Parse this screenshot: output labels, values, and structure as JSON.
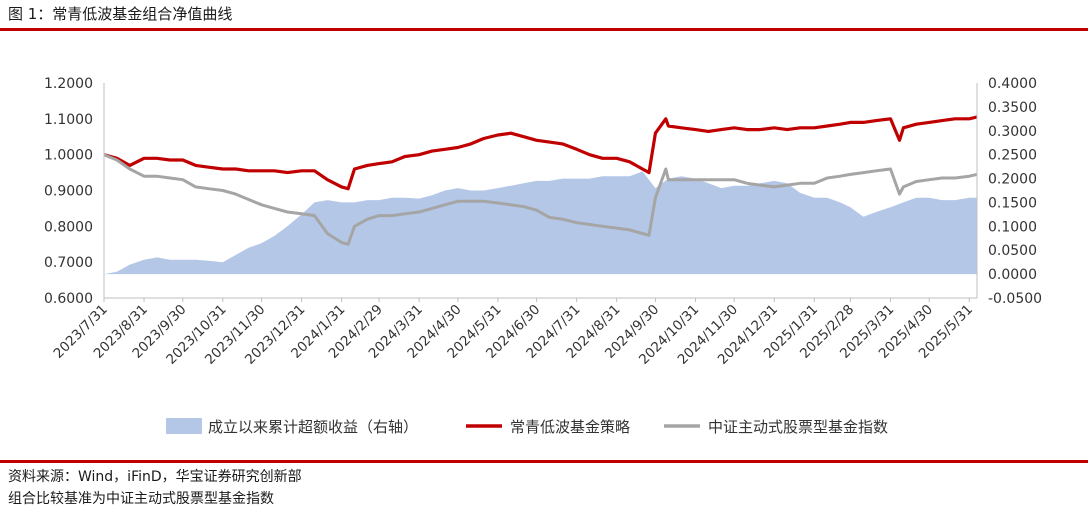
{
  "figure": {
    "title": "图 1：常青低波基金组合净值曲线",
    "source": "资料来源：Wind，iFinD，华宝证券研究创新部",
    "note": "组合比较基准为中证主动式股票型基金指数"
  },
  "colors": {
    "excess": "#b4c7e7",
    "strategy": "#c00000",
    "benchmark": "#a5a5a5",
    "rule": "#c00000"
  },
  "chart_data": {
    "type": "line",
    "left_axis": {
      "range": [
        0.6,
        1.2
      ],
      "ticks": [
        "0.6000",
        "0.7000",
        "0.8000",
        "0.9000",
        "1.0000",
        "1.1000",
        "1.2000"
      ],
      "tick_values": [
        0.6,
        0.7,
        0.8,
        0.9,
        1.0,
        1.1,
        1.2
      ]
    },
    "right_axis": {
      "range": [
        -0.05,
        0.4
      ],
      "ticks": [
        "-0.0500",
        "0.0000",
        "0.0500",
        "0.1000",
        "0.1500",
        "0.2000",
        "0.2500",
        "0.3000",
        "0.3500",
        "0.4000"
      ],
      "tick_values": [
        -0.05,
        0,
        0.05,
        0.1,
        0.15,
        0.2,
        0.25,
        0.3,
        0.35,
        0.4
      ]
    },
    "x_ticks": [
      "2023/7/31",
      "2023/8/31",
      "2023/9/30",
      "2023/10/31",
      "2023/11/30",
      "2023/12/31",
      "2024/1/31",
      "2024/2/29",
      "2024/3/31",
      "2024/4/30",
      "2024/5/31",
      "2024/6/30",
      "2024/7/31",
      "2024/8/31",
      "2024/9/30",
      "2024/10/31",
      "2024/11/30",
      "2024/12/31",
      "2025/1/31",
      "2025/2/28",
      "2025/3/31",
      "2025/4/30",
      "2025/5/31"
    ],
    "grid": false,
    "legend_position": "bottom",
    "series": [
      {
        "name": "成立以来累计超额收益（右轴）",
        "kind": "area",
        "axis": "right",
        "x": [
          "2023/7/31",
          "2023/8/10",
          "2023/8/20",
          "2023/8/31",
          "2023/9/10",
          "2023/9/20",
          "2023/9/30",
          "2023/10/10",
          "2023/10/20",
          "2023/10/31",
          "2023/11/10",
          "2023/11/20",
          "2023/11/30",
          "2023/12/10",
          "2023/12/20",
          "2023/12/31",
          "2024/1/10",
          "2024/1/20",
          "2024/1/31",
          "2024/2/10",
          "2024/2/20",
          "2024/2/29",
          "2024/3/10",
          "2024/3/20",
          "2024/3/31",
          "2024/4/10",
          "2024/4/20",
          "2024/4/30",
          "2024/5/10",
          "2024/5/20",
          "2024/5/31",
          "2024/6/10",
          "2024/6/20",
          "2024/6/30",
          "2024/7/10",
          "2024/7/20",
          "2024/7/31",
          "2024/8/10",
          "2024/8/20",
          "2024/8/31",
          "2024/9/10",
          "2024/9/20",
          "2024/9/30",
          "2024/10/10",
          "2024/10/20",
          "2024/10/31",
          "2024/11/10",
          "2024/11/20",
          "2024/11/30",
          "2024/12/10",
          "2024/12/20",
          "2024/12/31",
          "2025/1/10",
          "2025/1/20",
          "2025/1/31",
          "2025/2/10",
          "2025/2/20",
          "2025/2/28",
          "2025/3/10",
          "2025/3/20",
          "2025/3/31",
          "2025/4/10",
          "2025/4/20",
          "2025/4/30",
          "2025/5/10",
          "2025/5/20",
          "2025/5/31",
          "2025/6/6"
        ],
        "y": [
          0.0,
          0.005,
          0.02,
          0.03,
          0.035,
          0.03,
          0.03,
          0.03,
          0.028,
          0.025,
          0.04,
          0.055,
          0.065,
          0.08,
          0.1,
          0.125,
          0.15,
          0.155,
          0.15,
          0.15,
          0.155,
          0.155,
          0.16,
          0.16,
          0.158,
          0.165,
          0.175,
          0.18,
          0.175,
          0.175,
          0.18,
          0.185,
          0.19,
          0.195,
          0.195,
          0.2,
          0.2,
          0.2,
          0.205,
          0.205,
          0.205,
          0.215,
          0.18,
          0.2,
          0.205,
          0.2,
          0.19,
          0.18,
          0.185,
          0.185,
          0.19,
          0.195,
          0.19,
          0.17,
          0.16,
          0.16,
          0.15,
          0.14,
          0.12,
          0.13,
          0.14,
          0.15,
          0.16,
          0.16,
          0.155,
          0.155,
          0.16,
          0.16
        ]
      },
      {
        "name": "常青低波基金策略",
        "kind": "line",
        "axis": "left",
        "x": [
          "2023/7/31",
          "2023/8/10",
          "2023/8/20",
          "2023/8/31",
          "2023/9/10",
          "2023/9/20",
          "2023/9/30",
          "2023/10/10",
          "2023/10/20",
          "2023/10/31",
          "2023/11/10",
          "2023/11/20",
          "2023/11/30",
          "2023/12/10",
          "2023/12/20",
          "2023/12/31",
          "2024/1/10",
          "2024/1/20",
          "2024/1/31",
          "2024/2/5",
          "2024/2/10",
          "2024/2/20",
          "2024/2/29",
          "2024/3/10",
          "2024/3/20",
          "2024/3/31",
          "2024/4/10",
          "2024/4/20",
          "2024/4/30",
          "2024/5/10",
          "2024/5/20",
          "2024/5/31",
          "2024/6/10",
          "2024/6/20",
          "2024/6/30",
          "2024/7/10",
          "2024/7/20",
          "2024/7/31",
          "2024/8/10",
          "2024/8/20",
          "2024/8/31",
          "2024/9/10",
          "2024/9/20",
          "2024/9/25",
          "2024/9/30",
          "2024/10/8",
          "2024/10/10",
          "2024/10/20",
          "2024/10/31",
          "2024/11/10",
          "2024/11/20",
          "2024/11/30",
          "2024/12/10",
          "2024/12/20",
          "2024/12/31",
          "2025/1/10",
          "2025/1/20",
          "2025/1/31",
          "2025/2/10",
          "2025/2/20",
          "2025/2/28",
          "2025/3/10",
          "2025/3/20",
          "2025/3/31",
          "2025/4/7",
          "2025/4/10",
          "2025/4/20",
          "2025/4/30",
          "2025/5/10",
          "2025/5/20",
          "2025/5/31",
          "2025/6/6"
        ],
        "y": [
          1.0,
          0.99,
          0.97,
          0.99,
          0.99,
          0.985,
          0.985,
          0.97,
          0.965,
          0.96,
          0.96,
          0.955,
          0.955,
          0.955,
          0.95,
          0.955,
          0.955,
          0.93,
          0.91,
          0.905,
          0.96,
          0.97,
          0.975,
          0.98,
          0.995,
          1.0,
          1.01,
          1.015,
          1.02,
          1.03,
          1.045,
          1.055,
          1.06,
          1.05,
          1.04,
          1.035,
          1.03,
          1.015,
          1.0,
          0.99,
          0.99,
          0.98,
          0.96,
          0.95,
          1.06,
          1.1,
          1.08,
          1.075,
          1.07,
          1.065,
          1.07,
          1.075,
          1.07,
          1.07,
          1.075,
          1.07,
          1.075,
          1.075,
          1.08,
          1.085,
          1.09,
          1.09,
          1.095,
          1.1,
          1.04,
          1.075,
          1.085,
          1.09,
          1.095,
          1.1,
          1.1,
          1.105
        ]
      },
      {
        "name": "中证主动式股票型基金指数",
        "kind": "line",
        "axis": "left",
        "x": [
          "2023/7/31",
          "2023/8/10",
          "2023/8/20",
          "2023/8/31",
          "2023/9/10",
          "2023/9/20",
          "2023/9/30",
          "2023/10/10",
          "2023/10/20",
          "2023/10/31",
          "2023/11/10",
          "2023/11/20",
          "2023/11/30",
          "2023/12/10",
          "2023/12/20",
          "2023/12/31",
          "2024/1/10",
          "2024/1/20",
          "2024/1/31",
          "2024/2/5",
          "2024/2/10",
          "2024/2/20",
          "2024/2/29",
          "2024/3/10",
          "2024/3/20",
          "2024/3/31",
          "2024/4/10",
          "2024/4/20",
          "2024/4/30",
          "2024/5/10",
          "2024/5/20",
          "2024/5/31",
          "2024/6/10",
          "2024/6/20",
          "2024/6/30",
          "2024/7/10",
          "2024/7/20",
          "2024/7/31",
          "2024/8/10",
          "2024/8/20",
          "2024/8/31",
          "2024/9/10",
          "2024/9/20",
          "2024/9/25",
          "2024/9/30",
          "2024/10/8",
          "2024/10/10",
          "2024/10/20",
          "2024/10/31",
          "2024/11/10",
          "2024/11/20",
          "2024/11/30",
          "2024/12/10",
          "2024/12/20",
          "2024/12/31",
          "2025/1/10",
          "2025/1/20",
          "2025/1/31",
          "2025/2/10",
          "2025/2/20",
          "2025/2/28",
          "2025/3/10",
          "2025/3/20",
          "2025/3/31",
          "2025/4/7",
          "2025/4/10",
          "2025/4/20",
          "2025/4/30",
          "2025/5/10",
          "2025/5/20",
          "2025/5/31",
          "2025/6/6"
        ],
        "y": [
          1.0,
          0.985,
          0.96,
          0.94,
          0.94,
          0.935,
          0.93,
          0.91,
          0.905,
          0.9,
          0.89,
          0.875,
          0.86,
          0.85,
          0.84,
          0.835,
          0.83,
          0.78,
          0.755,
          0.75,
          0.8,
          0.82,
          0.83,
          0.83,
          0.835,
          0.84,
          0.85,
          0.86,
          0.87,
          0.87,
          0.87,
          0.865,
          0.86,
          0.855,
          0.845,
          0.825,
          0.82,
          0.81,
          0.805,
          0.8,
          0.795,
          0.79,
          0.78,
          0.775,
          0.88,
          0.96,
          0.93,
          0.93,
          0.93,
          0.93,
          0.93,
          0.93,
          0.92,
          0.915,
          0.91,
          0.915,
          0.92,
          0.92,
          0.935,
          0.94,
          0.945,
          0.95,
          0.955,
          0.96,
          0.89,
          0.91,
          0.925,
          0.93,
          0.935,
          0.935,
          0.94,
          0.945
        ]
      }
    ]
  }
}
